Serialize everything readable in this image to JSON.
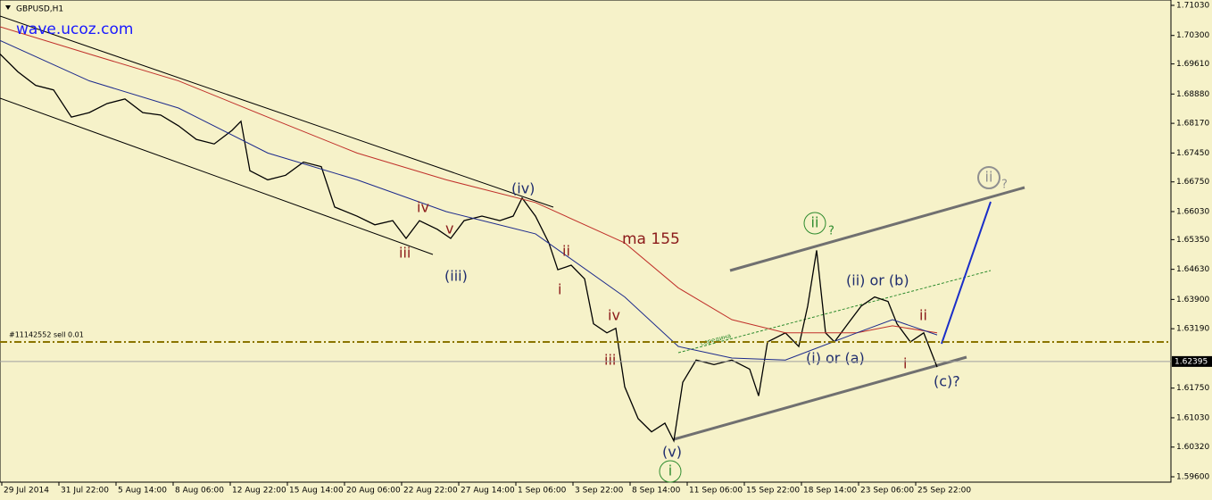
{
  "chart_data": {
    "type": "line",
    "title": "GBPUSD,H1",
    "xlim": [
      0,
      656
    ],
    "ylim": [
      1.5947,
      1.7116
    ],
    "xticks": [
      {
        "value": 1,
        "label": "29 Jul 2014"
      },
      {
        "value": 33,
        "label": "31 Jul 22:00"
      },
      {
        "value": 65,
        "label": "5 Aug 14:00"
      },
      {
        "value": 97,
        "label": "8 Aug 06:00"
      },
      {
        "value": 129,
        "label": "12 Aug 22:00"
      },
      {
        "value": 161,
        "label": "15 Aug 14:00"
      },
      {
        "value": 193,
        "label": "20 Aug 06:00"
      },
      {
        "value": 225,
        "label": "22 Aug 22:00"
      },
      {
        "value": 257,
        "label": "27 Aug 14:00"
      },
      {
        "value": 289,
        "label": "1 Sep 06:00"
      },
      {
        "value": 321,
        "label": "3 Sep 22:00"
      },
      {
        "value": 353,
        "label": "8 Sep 14:00"
      },
      {
        "value": 385,
        "label": "11 Sep 06:00"
      },
      {
        "value": 417,
        "label": "15 Sep 22:00"
      },
      {
        "value": 449,
        "label": "18 Sep 14:00"
      },
      {
        "value": 481,
        "label": "23 Sep 06:00"
      },
      {
        "value": 513,
        "label": "25 Sep 22:00"
      }
    ],
    "yticks": [
      {
        "value": 1.7103,
        "label": "1.71030"
      },
      {
        "value": 1.703,
        "label": "1.70300"
      },
      {
        "value": 1.6961,
        "label": "1.69610"
      },
      {
        "value": 1.6888,
        "label": "1.68880"
      },
      {
        "value": 1.6817,
        "label": "1.68170"
      },
      {
        "value": 1.6745,
        "label": "1.67450"
      },
      {
        "value": 1.6675,
        "label": "1.66750"
      },
      {
        "value": 1.6603,
        "label": "1.66030"
      },
      {
        "value": 1.6535,
        "label": "1.65350"
      },
      {
        "value": 1.6463,
        "label": "1.64630"
      },
      {
        "value": 1.639,
        "label": "1.63900"
      },
      {
        "value": 1.6319,
        "label": "1.63190"
      },
      {
        "value": 1.6175,
        "label": "1.61750"
      },
      {
        "value": 1.6103,
        "label": "1.61030"
      },
      {
        "value": 1.6032,
        "label": "1.60320"
      },
      {
        "value": 1.596,
        "label": "1.59600"
      }
    ],
    "last_price": 1.62395,
    "order_price": 1.6287,
    "series": [
      {
        "color": "#000000",
        "x": [
          0,
          10,
          20,
          30,
          40,
          50,
          60,
          70,
          80,
          90,
          100,
          110,
          120,
          130,
          135,
          140,
          150,
          160,
          170,
          180,
          187.5,
          200,
          210,
          220,
          227.5,
          235,
          245,
          252.5,
          260,
          270,
          280,
          287.5,
          292.5,
          300,
          307.5,
          312.5,
          320,
          327.5,
          332.5,
          340,
          345,
          350,
          357.5,
          365,
          372.5,
          377.5,
          382.5,
          390,
          400,
          410,
          420,
          425,
          430,
          440,
          447.5,
          452.5,
          457.5,
          462.5,
          467.5,
          475,
          482.5,
          490,
          497.5,
          502.5,
          510,
          517.5,
          525
        ],
        "values": [
          1.6985,
          1.6942,
          1.6909,
          1.6898,
          1.6832,
          1.6843,
          1.6865,
          1.6876,
          1.6843,
          1.6837,
          1.6811,
          1.6778,
          1.6767,
          1.68,
          1.6822,
          1.6702,
          1.668,
          1.6691,
          1.6723,
          1.6712,
          1.6614,
          1.6592,
          1.6571,
          1.6581,
          1.6538,
          1.6581,
          1.656,
          1.6538,
          1.6581,
          1.6592,
          1.6581,
          1.6592,
          1.6636,
          1.6592,
          1.6527,
          1.6462,
          1.6473,
          1.644,
          1.6331,
          1.6309,
          1.632,
          1.6178,
          1.6101,
          1.6069,
          1.609,
          1.6047,
          1.6189,
          1.6243,
          1.6232,
          1.6243,
          1.6221,
          1.6156,
          1.6287,
          1.6309,
          1.6276,
          1.6374,
          1.6509,
          1.6309,
          1.6287,
          1.6331,
          1.6374,
          1.6396,
          1.6385,
          1.6331,
          1.6287,
          1.6309,
          1.6226
        ]
      },
      {
        "color": "#c0302a",
        "x": [
          0,
          50,
          100,
          150,
          200,
          250,
          300,
          350,
          380,
          410,
          440,
          480,
          500,
          525
        ],
        "values": [
          1.7051,
          1.6985,
          1.692,
          1.6832,
          1.6745,
          1.668,
          1.6625,
          1.6527,
          1.6418,
          1.6341,
          1.6309,
          1.6309,
          1.6326,
          1.6309
        ]
      },
      {
        "color": "#1c2a8c",
        "x": [
          0,
          50,
          100,
          150,
          200,
          250,
          300,
          350,
          380,
          410,
          440,
          480,
          500,
          525
        ],
        "values": [
          1.7018,
          1.692,
          1.6854,
          1.6745,
          1.668,
          1.6603,
          1.6549,
          1.6396,
          1.6276,
          1.6248,
          1.6243,
          1.6309,
          1.6341,
          1.6304
        ]
      }
    ],
    "annotations": [
      {
        "text": "wave.ucoz.com",
        "color": "#1a1aff"
      },
      {
        "text": "ma 155",
        "color": "#8b1a1a"
      },
      {
        "text": "(iv)",
        "color": "#1f2d6e"
      },
      {
        "text": "iv",
        "color": "#8b1a1a"
      },
      {
        "text": "iii",
        "color": "#8b1a1a"
      },
      {
        "text": "v",
        "color": "#8b1a1a"
      },
      {
        "text": "(iii)",
        "color": "#1f2d6e"
      },
      {
        "text": "ii",
        "color": "#8b1a1a"
      },
      {
        "text": "i",
        "color": "#8b1a1a"
      },
      {
        "text": "iv",
        "color": "#8b1a1a"
      },
      {
        "text": "iii",
        "color": "#8b1a1a"
      },
      {
        "text": "(v)",
        "color": "#1f2d6e"
      },
      {
        "text": "i",
        "color": "#2e8b2e"
      },
      {
        "text": "ii",
        "color": "#2e8b2e"
      },
      {
        "text": "?",
        "color": "#2e8b2e"
      },
      {
        "text": "(ii) or (b)",
        "color": "#1f2d6e"
      },
      {
        "text": "(i) or (a)",
        "color": "#1f2d6e"
      },
      {
        "text": "i",
        "color": "#8b1a1a"
      },
      {
        "text": "ii",
        "color": "#8b1a1a"
      },
      {
        "text": "(c)?",
        "color": "#1f2d6e"
      },
      {
        "text": "ii",
        "color": "#909090"
      },
      {
        "text": "?",
        "color": "#909090"
      },
      {
        "text": "#11142552 sell 0.01",
        "color": "#000000"
      },
      {
        "text": "середина",
        "color": "#2e8b2e"
      }
    ]
  }
}
